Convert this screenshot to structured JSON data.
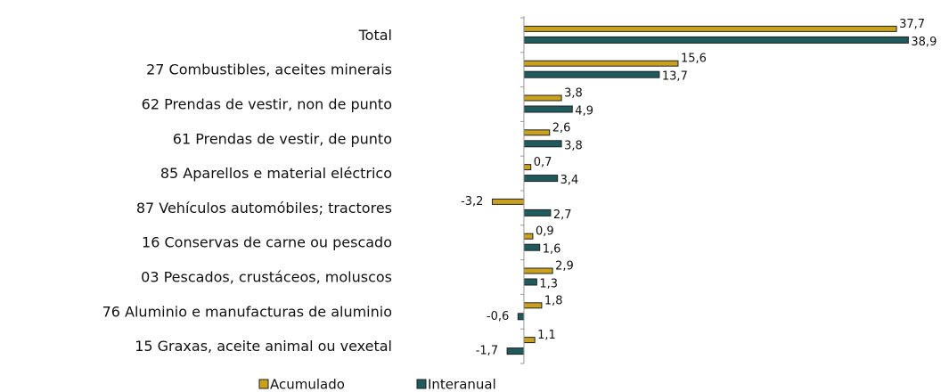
{
  "chart_data": {
    "type": "hbar",
    "categories": [
      "Total",
      "27 Combustibles, aceites minerais",
      "62 Prendas de vestir, non de punto",
      "61 Prendas de vestir, de punto",
      "85 Aparellos e material eléctrico",
      "87 Vehículos automóbiles; tractores",
      "16 Conservas de carne ou pescado",
      "03 Pescados, crustáceos, moluscos",
      "76 Aluminio  e  manufacturas de aluminio",
      "15 Graxas, aceite animal ou vexetal"
    ],
    "series": [
      {
        "name": "Acumulado",
        "color": "#c9a11d",
        "values": [
          37.7,
          15.6,
          3.8,
          2.6,
          0.7,
          -3.2,
          0.9,
          2.9,
          1.8,
          1.1
        ],
        "value_labels": [
          "37,7",
          "15,6",
          "3,8",
          "2,6",
          "0,7",
          "-3,2",
          "0,9",
          "2,9",
          "1,8",
          "1,1"
        ]
      },
      {
        "name": "Interanual",
        "color": "#1f5a5c",
        "values": [
          38.9,
          13.7,
          4.9,
          3.8,
          3.4,
          2.7,
          1.6,
          1.3,
          -0.6,
          -1.7
        ],
        "value_labels": [
          "38,9",
          "13,7",
          "4,9",
          "3,8",
          "3,4",
          "2,7",
          "1,6",
          "1,3",
          "-0,6",
          "-1,7"
        ]
      }
    ],
    "xlim": [
      -5,
      40
    ]
  }
}
